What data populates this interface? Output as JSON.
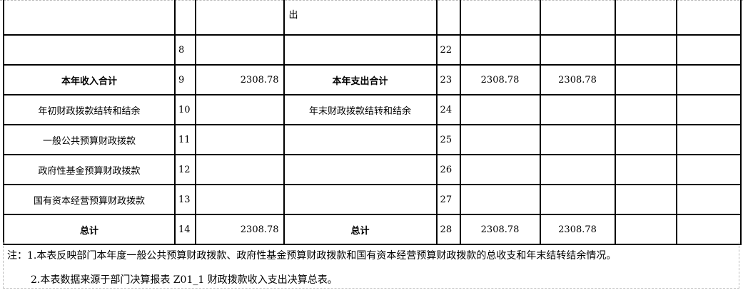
{
  "table": {
    "rows": [
      {
        "left_label": "",
        "left_no": "",
        "left_value": "",
        "right_label": "出",
        "right_no": "",
        "v1": "",
        "v2": "",
        "v3": "",
        "v4": "",
        "bold": false,
        "top": true
      },
      {
        "left_label": "",
        "left_no": "8",
        "left_value": "",
        "right_label": "",
        "right_no": "22",
        "v1": "",
        "v2": "",
        "v3": "",
        "v4": "",
        "bold": false
      },
      {
        "left_label": "本年收入合计",
        "left_no": "9",
        "left_value": "2308.78",
        "right_label": "本年支出合计",
        "right_no": "23",
        "v1": "2308.78",
        "v2": "2308.78",
        "v3": "",
        "v4": "",
        "bold": true
      },
      {
        "left_label": "年初财政拨款结转和结余",
        "left_no": "10",
        "left_value": "",
        "right_label": "年末财政拨款结转和结余",
        "right_no": "24",
        "v1": "",
        "v2": "",
        "v3": "",
        "v4": "",
        "bold": false
      },
      {
        "left_label": "一般公共预算财政拨款",
        "left_no": "11",
        "left_value": "",
        "right_label": "",
        "right_no": "25",
        "v1": "",
        "v2": "",
        "v3": "",
        "v4": "",
        "bold": false
      },
      {
        "left_label": "政府性基金预算财政拨款",
        "left_no": "12",
        "left_value": "",
        "right_label": "",
        "right_no": "26",
        "v1": "",
        "v2": "",
        "v3": "",
        "v4": "",
        "bold": false
      },
      {
        "left_label": "国有资本经营预算财政拨款",
        "left_no": "13",
        "left_value": "",
        "right_label": "",
        "right_no": "27",
        "v1": "",
        "v2": "",
        "v3": "",
        "v4": "",
        "bold": false
      },
      {
        "left_label": "总计",
        "left_no": "14",
        "left_value": "2308.78",
        "right_label": "总计",
        "right_no": "28",
        "v1": "2308.78",
        "v2": "2308.78",
        "v3": "",
        "v4": "",
        "bold": true
      }
    ]
  },
  "notes": {
    "line1": "注：1.本表反映部门本年度一般公共预算财政拨款、政府性基金预算财政拨款和国有资本经营预算财政拨款的总收支和年末结转结余情况。",
    "line2": "2.本表数据来源于部门决算报表 Z01_1 财政拨款收入支出决算总表。"
  }
}
